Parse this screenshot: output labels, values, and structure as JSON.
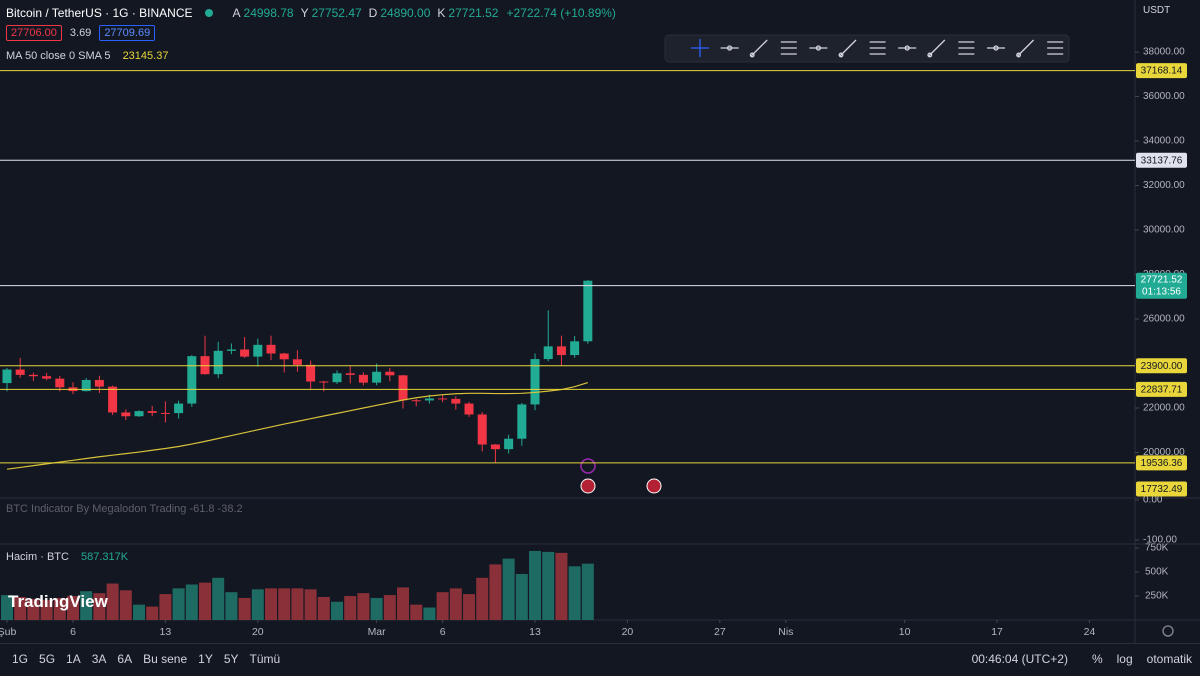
{
  "header": {
    "symbol": "Bitcoin / TetherUS · 1G · BINANCE",
    "ohlc": [
      {
        "key": "A",
        "value": "24998.78"
      },
      {
        "key": "Y",
        "value": "27752.47"
      },
      {
        "key": "D",
        "value": "24890.00"
      },
      {
        "key": "K",
        "value": "27721.52"
      }
    ],
    "change": "+2722.74 (+10.89%)",
    "bid": "27706.00",
    "spread": "3.69",
    "ask": "27709.69"
  },
  "currency": "USDT",
  "logo": "TradingView",
  "toolbar": {
    "intervals": [
      "1G",
      "5G",
      "1A",
      "3A",
      "6A",
      "Bu sene",
      "1Y",
      "5Y",
      "Tümü"
    ],
    "clock": "00:46:04 (UTC+2)",
    "options": [
      "%",
      "log",
      "otomatik"
    ]
  },
  "chart_data": [
    {
      "type": "candlestick",
      "x": [
        0,
        1,
        2,
        3,
        4,
        5,
        6,
        7,
        8,
        9,
        10,
        11,
        12,
        13,
        14,
        15,
        16,
        17,
        18,
        19,
        20,
        21,
        22,
        23,
        24,
        25,
        26,
        27,
        28,
        29,
        30,
        31,
        32,
        33,
        34,
        35,
        36,
        37,
        38,
        39,
        40,
        41,
        42,
        43,
        44
      ],
      "open": [
        23120,
        23730,
        23490,
        23430,
        23320,
        22930,
        22760,
        23260,
        22960,
        21800,
        21630,
        21860,
        21780,
        21770,
        22200,
        24330,
        23520,
        24570,
        24630,
        24310,
        24840,
        24450,
        24190,
        23940,
        23190,
        23160,
        23560,
        23490,
        23140,
        23630,
        23470,
        22350,
        22340,
        22430,
        22410,
        22200,
        21710,
        20360,
        20150,
        20620,
        22160,
        24200,
        24770,
        24380,
        24998.78
      ],
      "high": [
        23800,
        24250,
        23590,
        23580,
        23440,
        23160,
        23350,
        23450,
        23010,
        21940,
        21900,
        22090,
        22300,
        22330,
        24380,
        25250,
        24980,
        24900,
        25190,
        25120,
        25250,
        24480,
        24600,
        24130,
        23220,
        23690,
        23890,
        23600,
        24000,
        23800,
        23490,
        22410,
        22600,
        22590,
        22530,
        22270,
        21820,
        20380,
        20800,
        22230,
        24450,
        26390,
        25250,
        25230,
        27752.47
      ],
      "low": [
        22750,
        23360,
        23220,
        23250,
        22750,
        22630,
        22740,
        22670,
        21690,
        21460,
        21600,
        21630,
        21350,
        21530,
        22050,
        23500,
        23340,
        24420,
        24250,
        23860,
        24150,
        23600,
        23630,
        22860,
        22750,
        23080,
        23110,
        23020,
        23020,
        23200,
        21980,
        22080,
        22200,
        22260,
        21930,
        21600,
        20050,
        19550,
        19960,
        20300,
        21900,
        24100,
        23920,
        24260,
        24890
      ],
      "close": [
        23730,
        23490,
        23430,
        23320,
        22930,
        22760,
        23260,
        22960,
        21800,
        21630,
        21860,
        21780,
        21770,
        22200,
        24330,
        23520,
        24570,
        24630,
        24310,
        24840,
        24450,
        24190,
        23940,
        23190,
        23160,
        23560,
        23490,
        23140,
        23630,
        23470,
        22350,
        22340,
        22430,
        22410,
        22200,
        21710,
        20360,
        20150,
        20620,
        22160,
        24200,
        24770,
        24380,
        24998.78,
        27721.52
      ],
      "up_color": "#22ab94",
      "down_color": "#f23645",
      "ma": {
        "name": "MA 50 close 0 SMA 5",
        "legend_value": "23145.37",
        "color": "#d8c23a",
        "values": [
          19250,
          19330,
          19410,
          19490,
          19570,
          19650,
          19730,
          19810,
          19880,
          19950,
          20020,
          20100,
          20180,
          20270,
          20380,
          20500,
          20630,
          20760,
          20890,
          21020,
          21150,
          21280,
          21400,
          21520,
          21640,
          21760,
          21880,
          22000,
          22120,
          22240,
          22360,
          22460,
          22540,
          22600,
          22640,
          22660,
          22660,
          22650,
          22650,
          22660,
          22700,
          22760,
          22830,
          22960,
          23145.37
        ]
      },
      "xlim": [
        -0.53,
        85.45
      ],
      "xticks": [
        {
          "value": 0,
          "label": "Şub"
        },
        {
          "value": 5,
          "label": "6"
        },
        {
          "value": 12,
          "label": "13"
        },
        {
          "value": 19,
          "label": "20"
        },
        {
          "value": 28,
          "label": "Mar"
        },
        {
          "value": 33,
          "label": "6"
        },
        {
          "value": 40,
          "label": "13"
        },
        {
          "value": 47,
          "label": "20"
        },
        {
          "value": 54,
          "label": "27"
        },
        {
          "value": 59,
          "label": "Nis"
        },
        {
          "value": 68,
          "label": "10"
        },
        {
          "value": 75,
          "label": "17"
        },
        {
          "value": 82,
          "label": "24"
        }
      ],
      "ylim": [
        18000,
        40340
      ],
      "yticks": [
        {
          "value": 38000,
          "label": "38000.00"
        },
        {
          "value": 36000,
          "label": "36000.00"
        },
        {
          "value": 34000,
          "label": "34000.00"
        },
        {
          "value": 32000,
          "label": "32000.00"
        },
        {
          "value": 30000,
          "label": "30000.00"
        },
        {
          "value": 28000,
          "label": "28000.00"
        },
        {
          "value": 26000,
          "label": "26000.00"
        },
        {
          "value": 24000,
          "label": "24000.00"
        },
        {
          "value": 22000,
          "label": "22000.00"
        },
        {
          "value": 20000,
          "label": "20000.00"
        }
      ],
      "levels": [
        {
          "value": 37168.14,
          "label": "37168.14",
          "color": "#e8d63a"
        },
        {
          "value": 33137.76,
          "label": "33137.76",
          "color": "#e0e3eb"
        },
        {
          "value": 27500,
          "label": "27500.00",
          "color": "#e0e3eb"
        },
        {
          "value": 23900,
          "label": "23900.00",
          "color": "#e8d63a"
        },
        {
          "value": 22837.71,
          "label": "22837.71",
          "color": "#e8d63a"
        },
        {
          "value": 19536.36,
          "label": "19536.36",
          "color": "#e8d63a"
        },
        {
          "value": 17732.49,
          "label": "17732.49",
          "color": "#e8d63a"
        }
      ],
      "last_price": {
        "value": 27721.52,
        "countdown": "01:13:56"
      }
    },
    {
      "type": "bar",
      "title": "Hacim · BTC",
      "legend_value": "587.317K",
      "values": [
        260000,
        240000,
        220000,
        210000,
        230000,
        250000,
        300000,
        280000,
        380000,
        310000,
        160000,
        140000,
        270000,
        330000,
        370000,
        390000,
        440000,
        290000,
        230000,
        320000,
        330000,
        330000,
        330000,
        320000,
        240000,
        190000,
        250000,
        280000,
        230000,
        260000,
        340000,
        160000,
        130000,
        290000,
        330000,
        270000,
        440000,
        580000,
        640000,
        480000,
        720000,
        710000,
        700000,
        560000,
        587317
      ],
      "up_color": "#1d6b62",
      "down_color": "#8a3039",
      "ylim": [
        0,
        782000
      ],
      "yticks": [
        {
          "value": 750000,
          "label": "750K"
        },
        {
          "value": 500000,
          "label": "500K"
        },
        {
          "value": 250000,
          "label": "250K"
        }
      ]
    },
    {
      "type": "line",
      "title": "BTC Indicator By Megalodon Trading -61.8 -38.2",
      "ylim": [
        -107.5,
        7.5
      ],
      "yticks": [
        {
          "value": 0,
          "label": "0.00"
        },
        {
          "value": -100,
          "label": "-100.00"
        }
      ]
    }
  ]
}
